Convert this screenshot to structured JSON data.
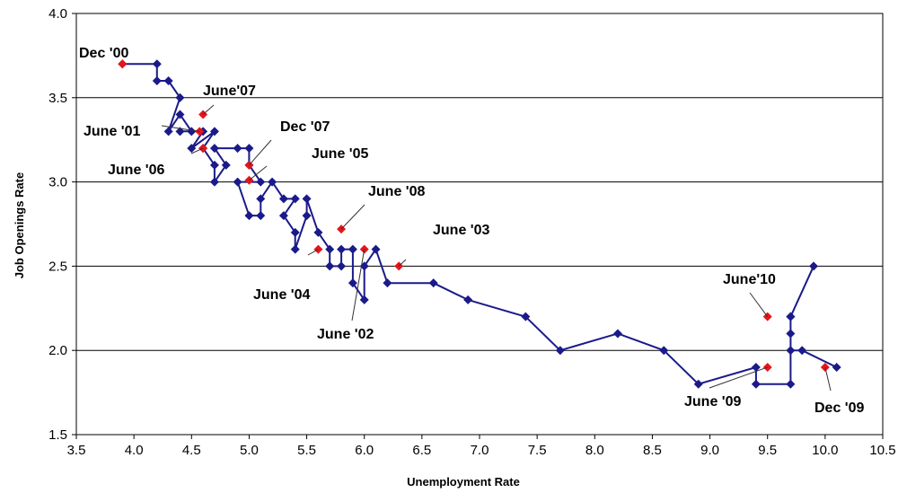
{
  "chart_data": {
    "type": "scatter",
    "title": "",
    "xlabel": "Unemployment Rate",
    "ylabel": "Job Openings Rate",
    "xlim": [
      3.5,
      10.5
    ],
    "ylim": [
      1.5,
      4.0
    ],
    "x_ticks": [
      "3.5",
      "4.0",
      "4.5",
      "5.0",
      "5.5",
      "6.0",
      "6.5",
      "7.0",
      "7.5",
      "8.0",
      "8.5",
      "9.0",
      "9.5",
      "10.0",
      "10.5"
    ],
    "y_ticks": [
      "1.5",
      "2.0",
      "2.5",
      "3.0",
      "3.5",
      "4.0"
    ],
    "grid": "horizontal",
    "connected": true,
    "colors": {
      "line": "#1a1a8a",
      "marker": "#1a1a8a",
      "highlight": "#e8141b",
      "grid": "#000000",
      "frame": "#000000"
    },
    "series": [
      {
        "points": [
          [
            3.9,
            3.7
          ],
          [
            4.2,
            3.7
          ],
          [
            4.2,
            3.6
          ],
          [
            4.3,
            3.6
          ],
          [
            4.4,
            3.5
          ],
          [
            4.3,
            3.3
          ],
          [
            4.4,
            3.4
          ],
          [
            4.5,
            3.3
          ],
          [
            4.4,
            3.3
          ],
          [
            4.6,
            3.3
          ],
          [
            4.5,
            3.2
          ],
          [
            4.7,
            3.3
          ],
          [
            4.6,
            3.2
          ],
          [
            4.7,
            3.1
          ],
          [
            4.7,
            3.0
          ],
          [
            4.8,
            3.1
          ],
          [
            4.7,
            3.2
          ],
          [
            4.9,
            3.2
          ],
          [
            5.0,
            3.2
          ],
          [
            5.0,
            3.1
          ],
          [
            5.1,
            3.0
          ],
          [
            4.9,
            3.0
          ],
          [
            5.0,
            2.8
          ],
          [
            5.1,
            2.8
          ],
          [
            5.1,
            2.9
          ],
          [
            5.2,
            3.0
          ],
          [
            5.3,
            2.9
          ],
          [
            5.4,
            2.9
          ],
          [
            5.3,
            2.8
          ],
          [
            5.4,
            2.7
          ],
          [
            5.4,
            2.6
          ],
          [
            5.5,
            2.8
          ],
          [
            5.5,
            2.9
          ],
          [
            5.6,
            2.7
          ],
          [
            5.7,
            2.6
          ],
          [
            5.7,
            2.5
          ],
          [
            5.8,
            2.5
          ],
          [
            5.8,
            2.6
          ],
          [
            5.9,
            2.6
          ],
          [
            5.9,
            2.4
          ],
          [
            6.0,
            2.3
          ],
          [
            6.0,
            2.5
          ],
          [
            6.1,
            2.6
          ],
          [
            6.2,
            2.4
          ],
          [
            6.6,
            2.4
          ],
          [
            6.9,
            2.3
          ],
          [
            7.4,
            2.2
          ],
          [
            7.7,
            2.0
          ],
          [
            8.2,
            2.1
          ],
          [
            8.6,
            2.0
          ],
          [
            8.9,
            1.8
          ],
          [
            9.4,
            1.9
          ],
          [
            9.4,
            1.8
          ],
          [
            9.7,
            1.8
          ],
          [
            9.7,
            2.2
          ],
          [
            9.9,
            2.5
          ],
          [
            9.7,
            2.2
          ],
          [
            9.7,
            2.1
          ],
          [
            9.7,
            2.0
          ],
          [
            9.8,
            2.0
          ],
          [
            10.1,
            1.9
          ]
        ]
      }
    ],
    "highlights": [
      {
        "label": "Dec '00",
        "x": 3.9,
        "y": 3.7
      },
      {
        "label": "June '01",
        "x": 4.57,
        "y": 3.3
      },
      {
        "label": "June '02",
        "x": 6.0,
        "y": 2.6
      },
      {
        "label": "June '03",
        "x": 6.3,
        "y": 2.5
      },
      {
        "label": "June '04",
        "x": 5.6,
        "y": 2.6
      },
      {
        "label": "June '05",
        "x": 5.0,
        "y": 3.01
      },
      {
        "label": "June '06",
        "x": 4.6,
        "y": 3.2
      },
      {
        "label": "June'07",
        "x": 4.6,
        "y": 3.4
      },
      {
        "label": "Dec '07",
        "x": 5.0,
        "y": 3.1
      },
      {
        "label": "June '08",
        "x": 5.8,
        "y": 2.72
      },
      {
        "label": "Dec '09",
        "x": 10.0,
        "y": 1.9
      },
      {
        "label": "June '09",
        "x": 9.5,
        "y": 1.9
      },
      {
        "label": "June'10",
        "x": 9.5,
        "y": 2.2
      }
    ]
  }
}
